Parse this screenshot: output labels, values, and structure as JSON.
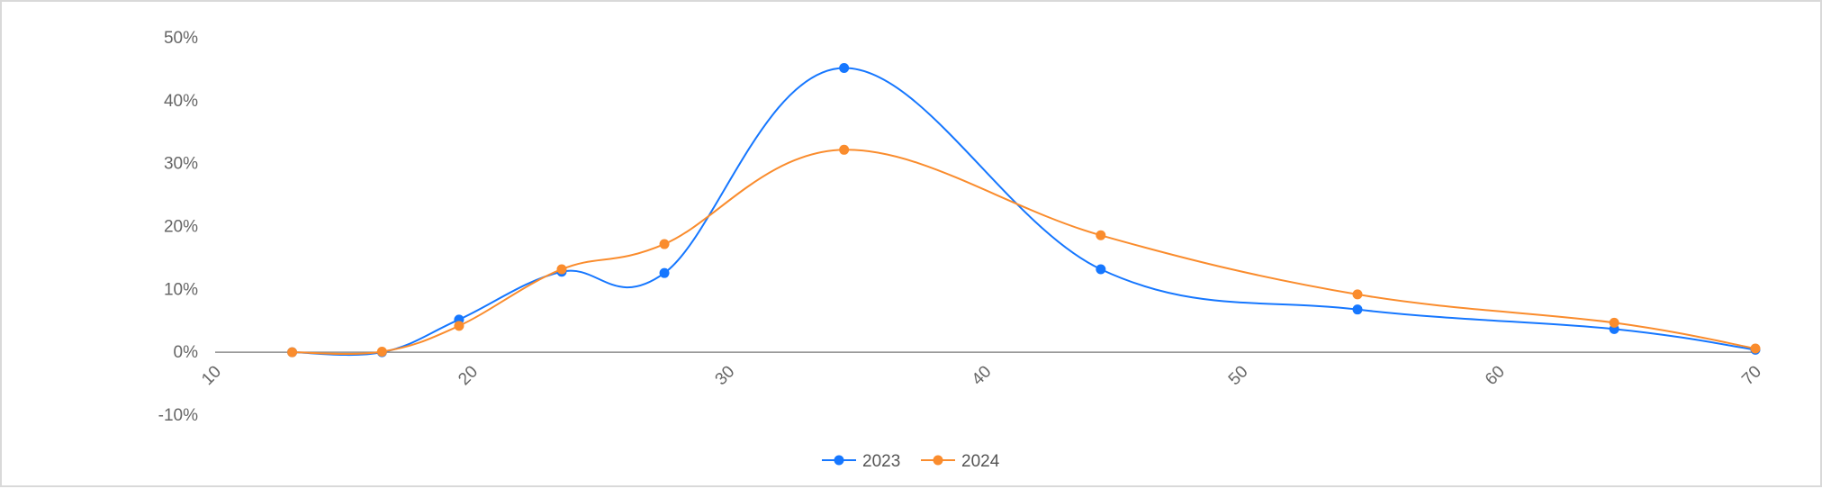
{
  "chart_data": {
    "type": "line",
    "title": "",
    "xlabel": "",
    "ylabel": "",
    "xlim": [
      10,
      70
    ],
    "ylim": [
      -10,
      50
    ],
    "x_ticks": [
      "10",
      "20",
      "30",
      "40",
      "50",
      "60",
      "70"
    ],
    "y_ticks": [
      "-10%",
      "0%",
      "10%",
      "20%",
      "30%",
      "40%",
      "50%"
    ],
    "grid": false,
    "smooth": true,
    "legend_position": "bottom-center",
    "series": [
      {
        "name": "2023",
        "color": "#1677ff",
        "points": [
          {
            "x": 13,
            "y": 0
          },
          {
            "x": 16.5,
            "y": 0
          },
          {
            "x": 19.5,
            "y": 5.2
          },
          {
            "x": 23.5,
            "y": 12.8
          },
          {
            "x": 27.5,
            "y": 12.6
          },
          {
            "x": 34.5,
            "y": 45.2
          },
          {
            "x": 44.5,
            "y": 13.2
          },
          {
            "x": 54.5,
            "y": 6.8
          },
          {
            "x": 64.5,
            "y": 3.7
          },
          {
            "x": 70,
            "y": 0.4
          }
        ]
      },
      {
        "name": "2024",
        "color": "#fa8c2d",
        "points": [
          {
            "x": 13,
            "y": 0
          },
          {
            "x": 16.5,
            "y": 0.1
          },
          {
            "x": 19.5,
            "y": 4.2
          },
          {
            "x": 23.5,
            "y": 13.2
          },
          {
            "x": 27.5,
            "y": 17.2
          },
          {
            "x": 34.5,
            "y": 32.2
          },
          {
            "x": 44.5,
            "y": 18.6
          },
          {
            "x": 54.5,
            "y": 9.2
          },
          {
            "x": 64.5,
            "y": 4.7
          },
          {
            "x": 70,
            "y": 0.6
          }
        ]
      }
    ]
  }
}
